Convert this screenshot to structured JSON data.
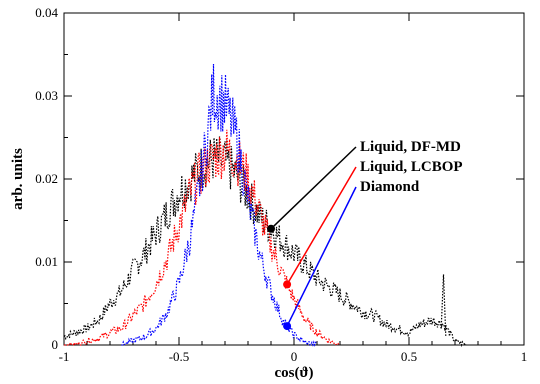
{
  "chart_data": {
    "type": "line",
    "xlabel": "cos(ϑ)",
    "ylabel": "arb. units",
    "xlim": [
      -1,
      1
    ],
    "ylim": [
      0,
      0.04
    ],
    "xticks": [
      -1,
      -0.5,
      0,
      0.5,
      1
    ],
    "xtick_labels": [
      "-1",
      "-0.5",
      "0",
      "0.5",
      "1"
    ],
    "yticks": [
      0,
      0.01,
      0.02,
      0.03,
      0.04
    ],
    "ytick_labels": [
      "0",
      "0.01",
      "0.02",
      "0.03",
      "0.04"
    ],
    "grid": false,
    "series": [
      {
        "name": "Liquid, DF-MD",
        "color": "#000000",
        "marker_x": -0.1,
        "x": [
          -1.0,
          -0.95,
          -0.9,
          -0.85,
          -0.8,
          -0.75,
          -0.7,
          -0.65,
          -0.6,
          -0.55,
          -0.5,
          -0.45,
          -0.4,
          -0.35,
          -0.3,
          -0.25,
          -0.2,
          -0.15,
          -0.1,
          -0.05,
          0.0,
          0.05,
          0.1,
          0.15,
          0.2,
          0.25,
          0.3,
          0.35,
          0.4,
          0.45,
          0.5,
          0.55,
          0.6,
          0.65,
          0.7,
          0.75
        ],
        "y": [
          0.001,
          0.0015,
          0.002,
          0.003,
          0.005,
          0.0065,
          0.009,
          0.011,
          0.0135,
          0.016,
          0.0185,
          0.02,
          0.0215,
          0.0225,
          0.022,
          0.0205,
          0.018,
          0.0155,
          0.014,
          0.0125,
          0.011,
          0.0095,
          0.008,
          0.007,
          0.006,
          0.005,
          0.004,
          0.0035,
          0.0025,
          0.002,
          0.0015,
          0.0025,
          0.003,
          0.0025,
          0.0005,
          0.0
        ]
      },
      {
        "name": "Liquid,  LCBOP",
        "color": "#ff0000",
        "marker_x": -0.03,
        "x": [
          -1.0,
          -0.95,
          -0.9,
          -0.85,
          -0.8,
          -0.75,
          -0.7,
          -0.65,
          -0.6,
          -0.55,
          -0.5,
          -0.45,
          -0.4,
          -0.35,
          -0.3,
          -0.25,
          -0.2,
          -0.15,
          -0.1,
          -0.05,
          0.0,
          0.05,
          0.1,
          0.15,
          0.2
        ],
        "y": [
          0.0,
          0.0,
          0.0005,
          0.0008,
          0.0015,
          0.002,
          0.0035,
          0.005,
          0.0075,
          0.0105,
          0.0145,
          0.0185,
          0.021,
          0.0225,
          0.0235,
          0.0225,
          0.02,
          0.016,
          0.012,
          0.0085,
          0.0055,
          0.003,
          0.0015,
          0.0005,
          0.0
        ]
      },
      {
        "name": "Diamond",
        "color": "#0000ff",
        "marker_x": -0.03,
        "x": [
          -0.75,
          -0.7,
          -0.65,
          -0.6,
          -0.55,
          -0.5,
          -0.45,
          -0.4,
          -0.35,
          -0.3,
          -0.25,
          -0.2,
          -0.15,
          -0.1,
          -0.05,
          0.0,
          0.05,
          0.1
        ],
        "y": [
          0.0,
          0.0005,
          0.001,
          0.002,
          0.004,
          0.0075,
          0.013,
          0.021,
          0.0305,
          0.029,
          0.025,
          0.0175,
          0.011,
          0.0065,
          0.003,
          0.0012,
          0.0003,
          0.0
        ]
      }
    ],
    "spike": {
      "x": 0.65,
      "y": 0.0085
    }
  }
}
